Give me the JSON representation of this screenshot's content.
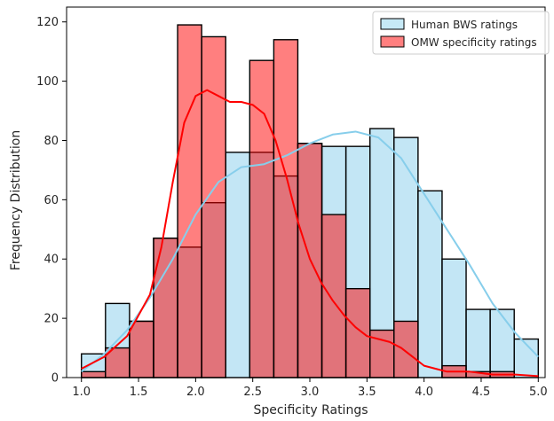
{
  "chart_data": {
    "type": "histogram",
    "xlabel": "Specificity Ratings",
    "ylabel": "Frequency Distribution",
    "xlim": [
      0.87,
      5.06
    ],
    "ylim": [
      0,
      125
    ],
    "x_ticks": [
      "1.0",
      "1.5",
      "2.0",
      "2.5",
      "3.0",
      "3.5",
      "4.0",
      "4.5",
      "5.0"
    ],
    "y_ticks": [
      "0",
      "20",
      "40",
      "60",
      "80",
      "100",
      "120"
    ],
    "grid": false,
    "legend_position": "top-right",
    "series": [
      {
        "name": "Human BWS ratings",
        "color_fill": "#87ceeb",
        "color_line": "#87ceeb",
        "bin_edges": [
          1.0,
          1.2105,
          1.4211,
          1.6316,
          1.8421,
          2.0526,
          2.2632,
          2.4737,
          2.6842,
          2.8947,
          3.1053,
          3.3158,
          3.5263,
          3.7368,
          3.9474,
          4.1579,
          4.3684,
          4.5789,
          4.7895,
          5.0
        ],
        "counts": [
          8,
          25,
          19,
          47,
          44,
          59,
          76,
          76,
          68,
          79,
          78,
          78,
          84,
          81,
          63,
          40,
          23,
          23,
          13
        ],
        "kde": [
          [
            1.0,
            2
          ],
          [
            1.2,
            8
          ],
          [
            1.4,
            16
          ],
          [
            1.6,
            27
          ],
          [
            1.8,
            40
          ],
          [
            2.0,
            55
          ],
          [
            2.2,
            66
          ],
          [
            2.4,
            71
          ],
          [
            2.6,
            72
          ],
          [
            2.8,
            75
          ],
          [
            3.0,
            79
          ],
          [
            3.2,
            82
          ],
          [
            3.4,
            83
          ],
          [
            3.6,
            81
          ],
          [
            3.8,
            74
          ],
          [
            4.0,
            62
          ],
          [
            4.2,
            50
          ],
          [
            4.4,
            38
          ],
          [
            4.6,
            25
          ],
          [
            4.8,
            15
          ],
          [
            5.0,
            7
          ]
        ]
      },
      {
        "name": "OMW specificity ratings",
        "color_fill": "#ff0000",
        "color_line": "#ff0000",
        "bin_edges": [
          1.0,
          1.2105,
          1.4211,
          1.6316,
          1.8421,
          2.0526,
          2.2632,
          2.4737,
          2.6842,
          2.8947,
          3.1053,
          3.3158,
          3.5263,
          3.7368,
          3.9474,
          4.1579,
          4.3684,
          4.5789,
          4.7895,
          5.0
        ],
        "counts": [
          2,
          10,
          19,
          47,
          119,
          115,
          0,
          107,
          114,
          79,
          55,
          30,
          16,
          19,
          0,
          4,
          2,
          2,
          0
        ],
        "kde": [
          [
            1.0,
            3
          ],
          [
            1.2,
            7
          ],
          [
            1.4,
            14
          ],
          [
            1.6,
            28
          ],
          [
            1.7,
            44
          ],
          [
            1.8,
            66
          ],
          [
            1.9,
            86
          ],
          [
            2.0,
            95
          ],
          [
            2.1,
            97
          ],
          [
            2.2,
            95
          ],
          [
            2.3,
            93
          ],
          [
            2.4,
            93
          ],
          [
            2.5,
            92
          ],
          [
            2.6,
            89
          ],
          [
            2.7,
            80
          ],
          [
            2.8,
            67
          ],
          [
            2.9,
            52
          ],
          [
            3.0,
            40
          ],
          [
            3.1,
            32
          ],
          [
            3.2,
            26
          ],
          [
            3.3,
            21
          ],
          [
            3.4,
            17
          ],
          [
            3.5,
            14
          ],
          [
            3.6,
            13
          ],
          [
            3.7,
            12
          ],
          [
            3.8,
            10
          ],
          [
            3.9,
            7
          ],
          [
            4.0,
            4
          ],
          [
            4.1,
            3
          ],
          [
            4.2,
            2
          ],
          [
            4.4,
            2
          ],
          [
            4.6,
            1
          ],
          [
            4.8,
            1
          ],
          [
            5.0,
            0.5
          ]
        ]
      }
    ]
  }
}
